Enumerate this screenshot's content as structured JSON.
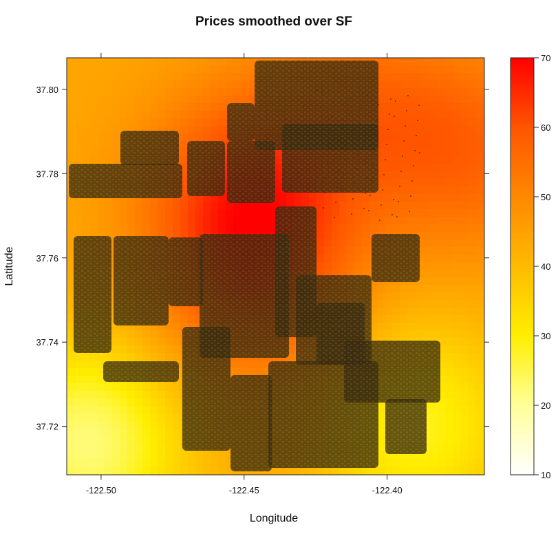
{
  "chart_data": {
    "type": "heatmap",
    "title": "Prices smoothed over SF",
    "xlabel": "Longitude",
    "ylabel": "Latitude",
    "xlim": [
      -122.512,
      -122.366
    ],
    "ylim": [
      37.7085,
      37.8075
    ],
    "x_ticks": [
      -122.5,
      -122.45,
      -122.4
    ],
    "x_tick_labels": [
      "-122.50",
      "-122.45",
      "-122.40"
    ],
    "y_ticks": [
      37.72,
      37.74,
      37.76,
      37.78,
      37.8
    ],
    "y_tick_labels": [
      "37.72",
      "37.74",
      "37.76",
      "37.78",
      "37.80"
    ],
    "colorbar": {
      "range": [
        10,
        70
      ],
      "ticks": [
        10,
        20,
        30,
        40,
        50,
        60,
        70
      ],
      "tick_labels": [
        "10",
        "20",
        "30",
        "40",
        "50",
        "60",
        "70"
      ],
      "colors": [
        "#ffffff",
        "#ffff99",
        "#ffee00",
        "#ffbb00",
        "#ff8800",
        "#ff5500",
        "#ff0000"
      ]
    },
    "field_hotspots": [
      {
        "lon": -122.45,
        "lat": 37.775,
        "value": 62
      },
      {
        "lon": -122.37,
        "lat": 37.785,
        "value": 56
      },
      {
        "lon": -122.41,
        "lat": 37.795,
        "value": 54
      },
      {
        "lon": -122.445,
        "lat": 37.752,
        "value": 58
      },
      {
        "lon": -122.505,
        "lat": 37.716,
        "value": 22
      },
      {
        "lon": -122.39,
        "lat": 37.72,
        "value": 28
      }
    ],
    "field_base": 44,
    "city_overlay": "map of San Francisco city blocks drawn in dark brown"
  }
}
